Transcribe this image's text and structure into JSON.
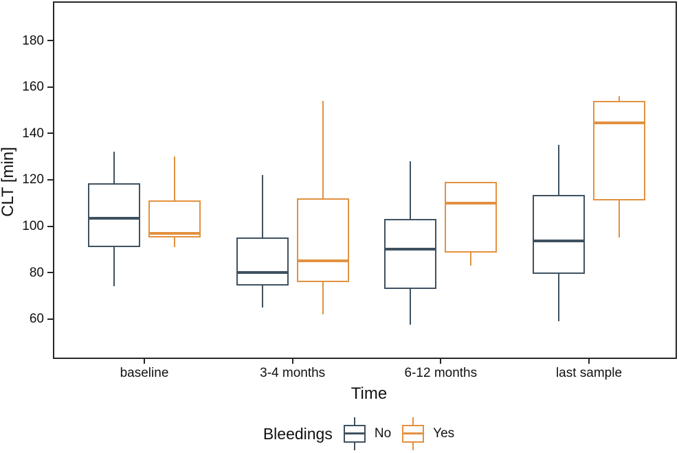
{
  "figure": {
    "background": "#ffffff",
    "panel_border_color": "#262626"
  },
  "chart_data": {
    "type": "boxplot",
    "title": "",
    "xlabel": "Time",
    "ylabel": "CLT [min]",
    "categories": [
      "baseline",
      "3-4 months",
      "6-12 months",
      "last sample"
    ],
    "y_ticks": [
      60,
      80,
      100,
      120,
      140,
      160,
      180
    ],
    "ylim": [
      43,
      196.7
    ],
    "grid": "off",
    "legend": {
      "title": "Bleedings",
      "position": "bottom",
      "entries": [
        {
          "label": "No",
          "color": "#3e5160"
        },
        {
          "label": "Yes",
          "color": "#e2913f"
        }
      ]
    },
    "series": [
      {
        "name": "No",
        "color": "#3e5160",
        "boxes": [
          {
            "category": "baseline",
            "whisker_low": 74,
            "q1": 91,
            "median": 103.5,
            "q3": 118.5,
            "whisker_high": 132
          },
          {
            "category": "3-4 months",
            "whisker_low": 65,
            "q1": 74.5,
            "median": 80,
            "q3": 95,
            "whisker_high": 122
          },
          {
            "category": "6-12 months",
            "whisker_low": 57.5,
            "q1": 73,
            "median": 90,
            "q3": 103,
            "whisker_high": 128
          },
          {
            "category": "last sample",
            "whisker_low": 59,
            "q1": 79.5,
            "median": 93.5,
            "q3": 113.5,
            "whisker_high": 135
          }
        ]
      },
      {
        "name": "Yes",
        "color": "#e2913f",
        "boxes": [
          {
            "category": "baseline",
            "whisker_low": 91,
            "q1": 95,
            "median": 97,
            "q3": 111,
            "whisker_high": 130
          },
          {
            "category": "3-4 months",
            "whisker_low": 62,
            "q1": 76,
            "median": 85,
            "q3": 112,
            "whisker_high": 154
          },
          {
            "category": "6-12 months",
            "whisker_low": 83,
            "q1": 88.5,
            "median": 110,
            "q3": 119,
            "whisker_high": 119
          },
          {
            "category": "last sample",
            "whisker_low": 95,
            "q1": 111,
            "median": 144.5,
            "q3": 154,
            "whisker_high": 156
          }
        ]
      }
    ]
  }
}
